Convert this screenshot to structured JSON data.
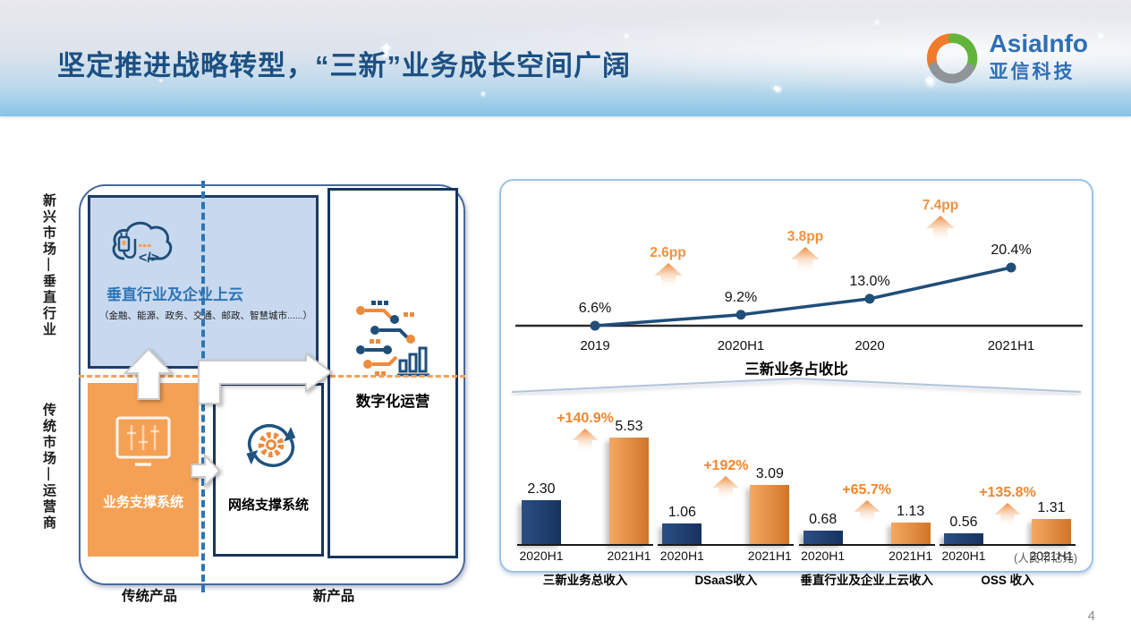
{
  "header": {
    "title": "坚定推进战略转型，“三新”业务成长空间广阔",
    "logo_en": "AsiaInfo",
    "logo_cn": "亚信科技"
  },
  "diagram": {
    "axis_left_top": "新兴市场—垂直行业",
    "axis_left_bottom": "传统市场—运营商",
    "axis_bottom_left": "传统产品",
    "axis_bottom_right": "新产品",
    "cloud_box": {
      "title": "垂直行业及企业上云",
      "subtitle": "（金融、能源、政务、交通、邮政、智慧城市......）"
    },
    "bss_box_label": "业务支撑系统",
    "nss_box_label": "网络支撑系统",
    "digital_box_label": "数字化运营",
    "icons": {
      "cloud-plug-code-icon": "cloud outline with plug and </> code glyph",
      "circuit-data-icon": "circuit dots, dashes and mini bar chart",
      "monitor-equalizer-icon": "white monitor with slider bars",
      "sync-gear-icon": "two circular arrows around an orange gear"
    }
  },
  "chart_data": [
    {
      "type": "line",
      "title": "三新业务占收比",
      "categories": [
        "2019",
        "2020H1",
        "2020",
        "2021H1"
      ],
      "values": [
        6.6,
        9.2,
        13.0,
        20.4
      ],
      "value_labels": [
        "6.6%",
        "9.2%",
        "13.0%",
        "20.4%"
      ],
      "delta_labels": [
        "2.6pp",
        "3.8pp",
        "7.4pp"
      ],
      "ylabel": "",
      "xlabel": "",
      "unit": "%",
      "line_color": "#1f4e79",
      "grid": false,
      "legend": "none"
    },
    {
      "type": "bar",
      "categories": [
        "2020H1",
        "2021H1"
      ],
      "unit_note": "(人民币亿元)",
      "series_colors": {
        "2020H1": "#1f3a66",
        "2021H1": "#e8883b"
      },
      "groups": [
        {
          "title": "三新业务总收入",
          "values": [
            2.3,
            5.53
          ],
          "value_labels": [
            "2.30",
            "5.53"
          ],
          "growth": "+140.9%"
        },
        {
          "title": "DSaaS收入",
          "values": [
            1.06,
            3.09
          ],
          "value_labels": [
            "1.06",
            "3.09"
          ],
          "growth": "+192%"
        },
        {
          "title": "垂直行业及企业上云收入",
          "values": [
            0.68,
            1.13
          ],
          "value_labels": [
            "0.68",
            "1.13"
          ],
          "growth": "+65.7%"
        },
        {
          "title": "OSS 收入",
          "values": [
            0.56,
            1.31
          ],
          "value_labels": [
            "0.56",
            "1.31"
          ],
          "growth": "+135.8%"
        }
      ]
    }
  ],
  "colors": {
    "accent_orange": "#ed7d31",
    "navy": "#1f4e79",
    "panel_border": "#9dc3e6",
    "title_blue": "#1c5083"
  },
  "page_number": "4"
}
